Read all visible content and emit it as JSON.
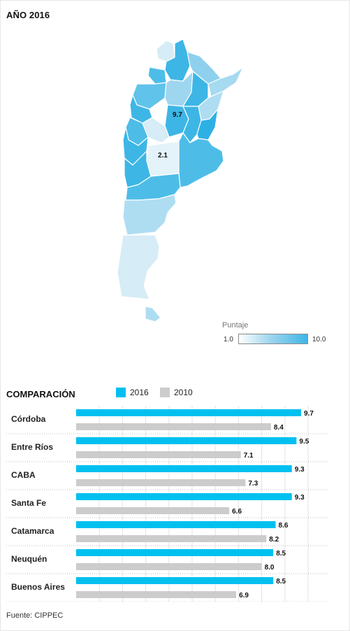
{
  "title": "AÑO 2016",
  "map": {
    "label_high": "9.7",
    "label_low": "2.1",
    "legend": {
      "title": "Puntaje",
      "min": "1.0",
      "max": "10.0",
      "color_low": "#ffffff",
      "color_high": "#3db6e6"
    }
  },
  "comparison": {
    "title": "COMPARACIÓN",
    "series_2016_label": "2016",
    "series_2010_label": "2010",
    "color_2016": "#00c0f0",
    "color_2010": "#cccccc"
  },
  "chart_data": {
    "type": "bar",
    "orientation": "horizontal",
    "categories": [
      "Córdoba",
      "Entre Ríos",
      "CABA",
      "Santa Fe",
      "Catamarca",
      "Neuquén",
      "Buenos Aires"
    ],
    "series": [
      {
        "name": "2016",
        "values": [
          9.7,
          9.5,
          9.3,
          9.3,
          8.6,
          8.5,
          8.5
        ]
      },
      {
        "name": "2010",
        "values": [
          8.4,
          7.1,
          7.3,
          6.6,
          8.2,
          8.0,
          6.9
        ]
      }
    ],
    "xlim": [
      0,
      10
    ],
    "grid": true,
    "legend": "top"
  },
  "source": "Fuente: CIPPEC"
}
